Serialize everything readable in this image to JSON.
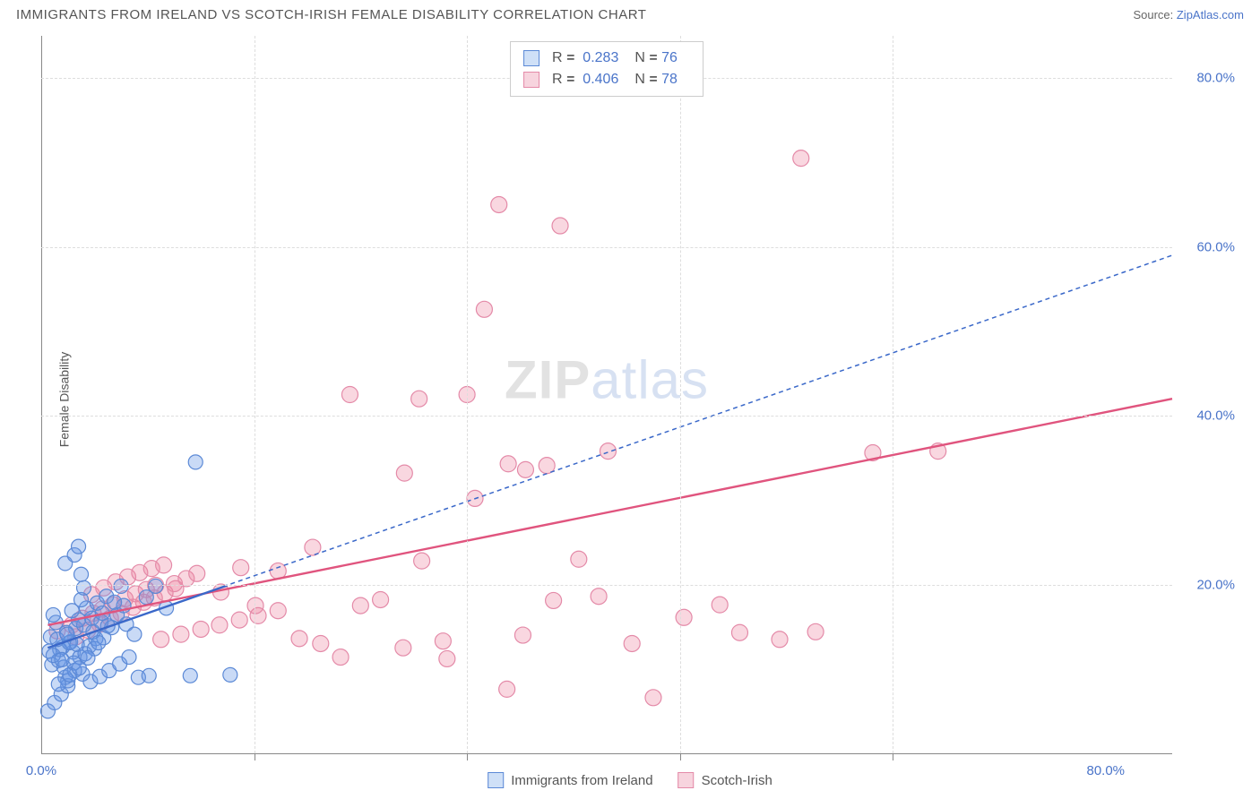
{
  "header": {
    "title": "IMMIGRANTS FROM IRELAND VS SCOTCH-IRISH FEMALE DISABILITY CORRELATION CHART",
    "source_prefix": "Source: ",
    "source_link": "ZipAtlas.com"
  },
  "chart": {
    "type": "scatter",
    "y_axis_title": "Female Disability",
    "xlim": [
      0,
      85
    ],
    "ylim": [
      0,
      85
    ],
    "x_ticks": [
      0,
      80
    ],
    "x_tick_labels": [
      "0.0%",
      "80.0%"
    ],
    "x_minor_ticks": [
      16,
      32,
      48,
      64
    ],
    "y_ticks": [
      20,
      40,
      60,
      80
    ],
    "y_tick_labels": [
      "20.0%",
      "40.0%",
      "60.0%",
      "80.0%"
    ],
    "grid_color": "#dddddd",
    "axis_color": "#888888",
    "background_color": "#ffffff",
    "watermark_zip": "ZIP",
    "watermark_atlas": "atlas",
    "stats": [
      {
        "R_label": "R",
        "R": "0.283",
        "N_label": "N",
        "N": "76"
      },
      {
        "R_label": "R",
        "R": "0.406",
        "N_label": "N",
        "N": "78"
      }
    ],
    "series": [
      {
        "name": "Immigrants from Ireland",
        "marker_fill": "rgba(100,150,230,0.35)",
        "marker_stroke": "#5b89d6",
        "marker_r": 8,
        "swatch_fill": "#cfe0f7",
        "swatch_border": "#5b89d6",
        "line_color": "#3a68c9",
        "line_dash": "5 4",
        "line_width": 1.5,
        "trend": {
          "x1": 0.5,
          "y1": 12.5,
          "x2": 85,
          "y2": 59
        },
        "solid_segment": {
          "x1": 0.5,
          "y1": 12.5,
          "x2": 14,
          "y2": 19.9
        },
        "points": [
          [
            0.5,
            5
          ],
          [
            1,
            6
          ],
          [
            1.5,
            7
          ],
          [
            2,
            8
          ],
          [
            1.8,
            9
          ],
          [
            0.8,
            10.5
          ],
          [
            1.3,
            11
          ],
          [
            2.4,
            12
          ],
          [
            1.6,
            12.6
          ],
          [
            2.2,
            13.2
          ],
          [
            0.7,
            13.8
          ],
          [
            1.9,
            14.3
          ],
          [
            2.6,
            14.8
          ],
          [
            3.2,
            15.2
          ],
          [
            1.1,
            15.5
          ],
          [
            2.8,
            15.8
          ],
          [
            3.8,
            16
          ],
          [
            0.9,
            16.4
          ],
          [
            2.3,
            16.9
          ],
          [
            3.4,
            17.2
          ],
          [
            1.4,
            12.3
          ],
          [
            2.1,
            13.1
          ],
          [
            2.9,
            11.4
          ],
          [
            3.6,
            12.7
          ],
          [
            4.1,
            13.6
          ],
          [
            1.7,
            10.2
          ],
          [
            2.5,
            9.8
          ],
          [
            3.1,
            9.4
          ],
          [
            3.9,
            14.4
          ],
          [
            4.5,
            15.6
          ],
          [
            0.6,
            12.1
          ],
          [
            1.2,
            13.5
          ],
          [
            1.95,
            14.1
          ],
          [
            2.7,
            12.9
          ],
          [
            3.3,
            11.8
          ],
          [
            4.0,
            12.4
          ],
          [
            4.7,
            13.7
          ],
          [
            5.3,
            14.9
          ],
          [
            2.0,
            8.6
          ],
          [
            2.45,
            10.7
          ],
          [
            0.9,
            11.6
          ],
          [
            1.55,
            11.1
          ],
          [
            2.15,
            9.3
          ],
          [
            2.85,
            10.1
          ],
          [
            3.5,
            11.3
          ],
          [
            4.3,
            13.1
          ],
          [
            5.0,
            15.1
          ],
          [
            5.7,
            16.4
          ],
          [
            6.2,
            17.5
          ],
          [
            1.3,
            8.2
          ],
          [
            3.0,
            18.2
          ],
          [
            3.7,
            8.5
          ],
          [
            4.4,
            9.1
          ],
          [
            5.1,
            9.8
          ],
          [
            5.9,
            10.6
          ],
          [
            6.6,
            11.4
          ],
          [
            7.3,
            9.0
          ],
          [
            8.1,
            9.2
          ],
          [
            1.8,
            22.5
          ],
          [
            2.5,
            23.5
          ],
          [
            3.2,
            19.6
          ],
          [
            4.2,
            17.8
          ],
          [
            4.9,
            18.6
          ],
          [
            6.0,
            19.8
          ],
          [
            3.0,
            21.2
          ],
          [
            4.6,
            16.6
          ],
          [
            5.5,
            17.9
          ],
          [
            6.4,
            15.3
          ],
          [
            7.0,
            14.1
          ],
          [
            2.8,
            24.5
          ],
          [
            11.2,
            9.2
          ],
          [
            14.2,
            9.3
          ],
          [
            11.6,
            34.5
          ],
          [
            7.9,
            18.5
          ],
          [
            8.6,
            19.8
          ],
          [
            9.4,
            17.2
          ]
        ]
      },
      {
        "name": "Scotch-Irish",
        "marker_fill": "rgba(235,130,160,0.32)",
        "marker_stroke": "#e48aa8",
        "marker_r": 9,
        "swatch_fill": "#f7d4de",
        "swatch_border": "#e48aa8",
        "line_color": "#e0547e",
        "line_dash": "",
        "line_width": 2.4,
        "trend": {
          "x1": 0.5,
          "y1": 15.2,
          "x2": 85,
          "y2": 42
        },
        "points": [
          [
            1.2,
            14.5
          ],
          [
            2.3,
            15.2
          ],
          [
            3.1,
            16
          ],
          [
            3.9,
            16.6
          ],
          [
            4.6,
            17.1
          ],
          [
            5.4,
            17.6
          ],
          [
            6.3,
            18.3
          ],
          [
            7.1,
            18.9
          ],
          [
            7.9,
            19.4
          ],
          [
            8.6,
            19.9
          ],
          [
            2.6,
            13.8
          ],
          [
            3.5,
            14.6
          ],
          [
            4.4,
            15.3
          ],
          [
            5.2,
            16
          ],
          [
            6.0,
            16.6
          ],
          [
            6.9,
            17.3
          ],
          [
            7.7,
            17.9
          ],
          [
            8.5,
            18.4
          ],
          [
            9.3,
            19
          ],
          [
            10.1,
            19.5
          ],
          [
            3.8,
            18.8
          ],
          [
            4.7,
            19.6
          ],
          [
            5.6,
            20.3
          ],
          [
            6.5,
            20.9
          ],
          [
            7.4,
            21.4
          ],
          [
            8.3,
            21.9
          ],
          [
            9.2,
            22.3
          ],
          [
            10.0,
            20.1
          ],
          [
            10.9,
            20.7
          ],
          [
            11.7,
            21.3
          ],
          [
            9.0,
            13.5
          ],
          [
            10.5,
            14.1
          ],
          [
            12.0,
            14.7
          ],
          [
            13.4,
            15.2
          ],
          [
            14.9,
            15.8
          ],
          [
            16.3,
            16.3
          ],
          [
            17.8,
            16.9
          ],
          [
            13.5,
            19.1
          ],
          [
            15.0,
            22
          ],
          [
            16.1,
            17.5
          ],
          [
            17.8,
            21.6
          ],
          [
            19.4,
            13.6
          ],
          [
            20.4,
            24.4
          ],
          [
            22.5,
            11.4
          ],
          [
            21.0,
            13.0
          ],
          [
            24.0,
            17.5
          ],
          [
            25.5,
            18.2
          ],
          [
            27.2,
            12.5
          ],
          [
            28.6,
            22.8
          ],
          [
            30.2,
            13.3
          ],
          [
            23.2,
            42.5
          ],
          [
            28.4,
            42.0
          ],
          [
            32.0,
            42.5
          ],
          [
            34.4,
            65
          ],
          [
            36.4,
            33.6
          ],
          [
            38.5,
            18.1
          ],
          [
            40.4,
            23.0
          ],
          [
            42.6,
            35.8
          ],
          [
            36.2,
            14.0
          ],
          [
            30.5,
            11.2
          ],
          [
            33.3,
            52.6
          ],
          [
            35.0,
            7.6
          ],
          [
            39.0,
            62.5
          ],
          [
            46.0,
            6.6
          ],
          [
            32.6,
            30.2
          ],
          [
            27.3,
            33.2
          ],
          [
            35.1,
            34.3
          ],
          [
            44.4,
            13.0
          ],
          [
            52.5,
            14.3
          ],
          [
            51.0,
            17.6
          ],
          [
            55.5,
            13.5
          ],
          [
            58.2,
            14.4
          ],
          [
            62.5,
            35.6
          ],
          [
            67.4,
            35.8
          ],
          [
            57.1,
            70.5
          ],
          [
            48.3,
            16.1
          ],
          [
            41.9,
            18.6
          ],
          [
            38.0,
            34.1
          ]
        ]
      }
    ],
    "legend": [
      {
        "label": "Immigrants from Ireland"
      },
      {
        "label": "Scotch-Irish"
      }
    ]
  }
}
